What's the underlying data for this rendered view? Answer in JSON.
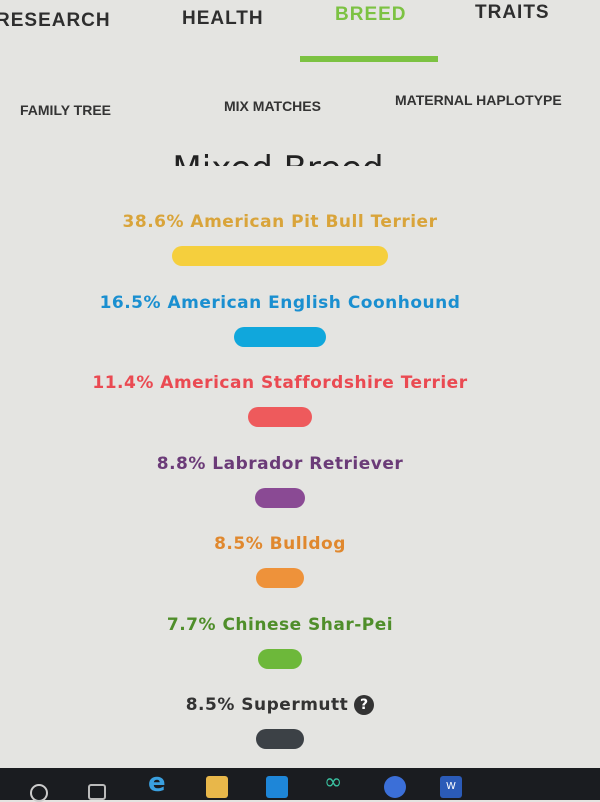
{
  "tabs": [
    {
      "label": "RESEARCH"
    },
    {
      "label": "HEALTH"
    },
    {
      "label": "BREED",
      "active": true
    },
    {
      "label": "TRAITS"
    }
  ],
  "subtabs": [
    {
      "label": "FAMILY TREE"
    },
    {
      "label": "MIX MATCHES"
    },
    {
      "label": "MATERNAL HAPLOTYPE"
    }
  ],
  "title": "Mixed Breed",
  "breeds": [
    {
      "label": "38.6% American Pit Bull Terrier",
      "percent": 38.6,
      "color": "#f5cf3d",
      "text_color": "#d9a43a"
    },
    {
      "label": "16.5% American English Coonhound",
      "percent": 16.5,
      "color": "#10a7dc",
      "text_color": "#1a8fd0"
    },
    {
      "label": "11.4% American Staffordshire Terrier",
      "percent": 11.4,
      "color": "#ee5a5c",
      "text_color": "#ea4a52"
    },
    {
      "label": "8.8% Labrador Retriever",
      "percent": 8.8,
      "color": "#8a4a94",
      "text_color": "#6b3b78"
    },
    {
      "label": "8.5% Bulldog",
      "percent": 8.5,
      "color": "#ee923a",
      "text_color": "#e0882e"
    },
    {
      "label": "7.7% Chinese Shar-Pei",
      "percent": 7.7,
      "color": "#6db83a",
      "text_color": "#4f8e2a"
    },
    {
      "label": "8.5% Supermutt",
      "percent": 8.5,
      "color": "#3c4146",
      "text_color": "#333333",
      "help": "?"
    }
  ],
  "taskbar": {
    "icons": [
      "search-icon",
      "task-view-icon",
      "edge-icon",
      "file-explorer-icon",
      "mail-icon",
      "infinity-app-icon",
      "chrome-icon",
      "word-icon"
    ]
  }
}
